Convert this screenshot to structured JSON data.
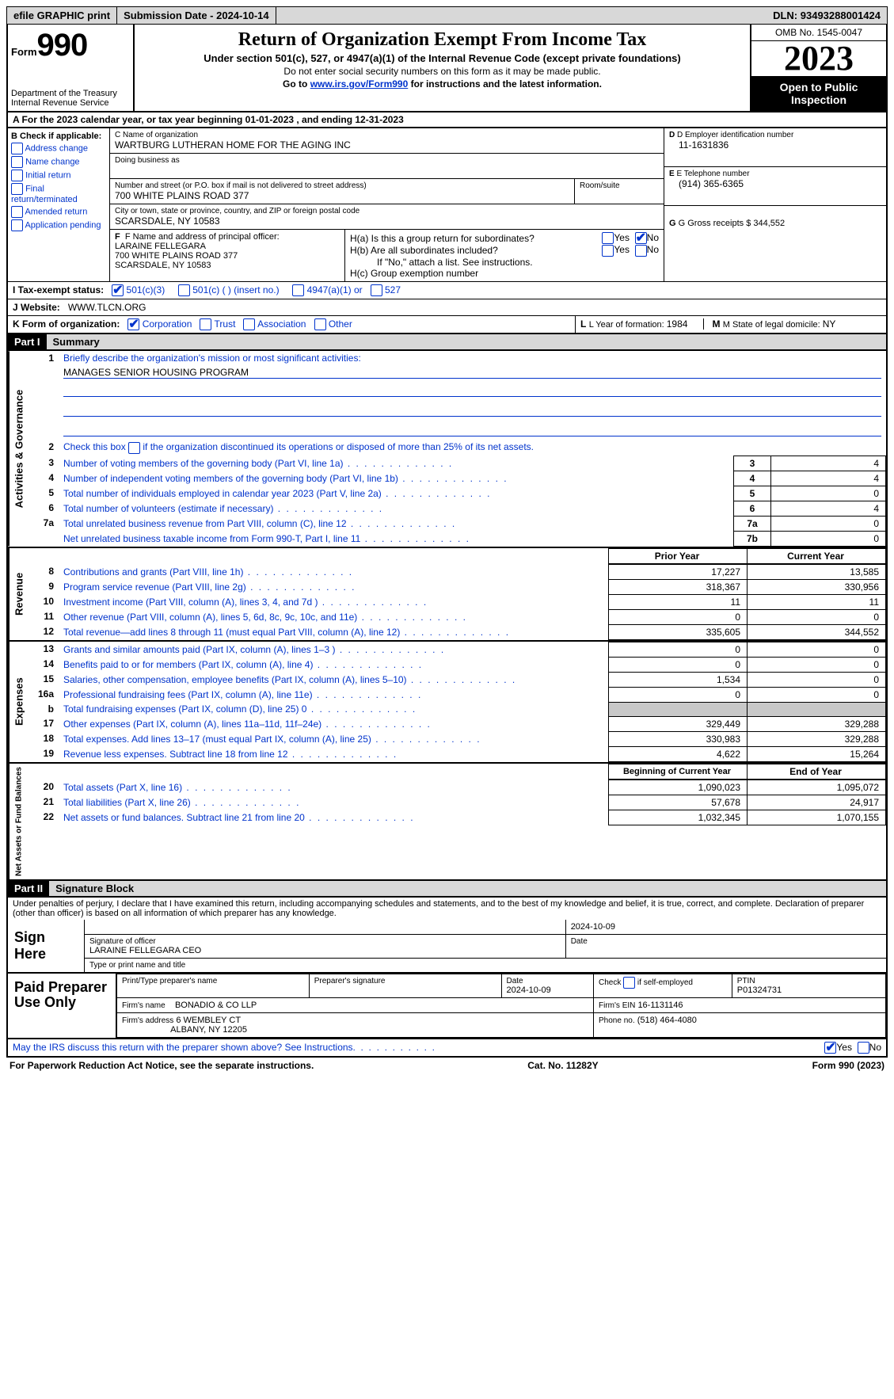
{
  "topbar": {
    "efile": "efile GRAPHIC print",
    "submission_label": "Submission Date - ",
    "submission_date": "2024-10-14",
    "dln_label": "DLN: ",
    "dln": "93493288001424"
  },
  "header": {
    "form_label": "Form",
    "form_num": "990",
    "dept": "Department of the Treasury\nInternal Revenue Service",
    "title": "Return of Organization Exempt From Income Tax",
    "subtitle": "Under section 501(c), 527, or 4947(a)(1) of the Internal Revenue Code (except private foundations)",
    "note1": "Do not enter social security numbers on this form as it may be made public.",
    "note2_prefix": "Go to ",
    "note2_link": "www.irs.gov/Form990",
    "note2_suffix": " for instructions and the latest information.",
    "omb": "OMB No. 1545-0047",
    "year": "2023",
    "inspection": "Open to Public Inspection"
  },
  "row_a": "A  For the 2023 calendar year, or tax year beginning 01-01-2023     , and ending 12-31-2023",
  "section_b": {
    "label": "B Check if applicable:",
    "items": [
      "Address change",
      "Name change",
      "Initial return",
      "Final return/terminated",
      "Amended return",
      "Application pending"
    ]
  },
  "section_c": {
    "name_lbl": "C Name of organization",
    "name": "WARTBURG LUTHERAN HOME FOR THE AGING INC",
    "dba_lbl": "Doing business as",
    "street_lbl": "Number and street (or P.O. box if mail is not delivered to street address)",
    "street": "700 WHITE PLAINS ROAD 377",
    "room_lbl": "Room/suite",
    "city_lbl": "City or town, state or province, country, and ZIP or foreign postal code",
    "city": "SCARSDALE, NY  10583"
  },
  "section_d": {
    "lbl": "D Employer identification number",
    "val": "11-1631836"
  },
  "section_e": {
    "lbl": "E Telephone number",
    "val": "(914) 365-6365"
  },
  "section_g": {
    "lbl": "G Gross receipts $ ",
    "val": "344,552"
  },
  "section_f": {
    "lbl": "F  Name and address of principal officer:",
    "name": "LARAINE FELLEGARA",
    "addr1": "700 WHITE PLAINS ROAD 377",
    "addr2": "SCARSDALE, NY  10583"
  },
  "section_h": {
    "ha": "H(a)  Is this a group return for subordinates?",
    "hb": "H(b)  Are all subordinates included?",
    "hb_note": "If \"No,\" attach a list. See instructions.",
    "hc": "H(c)  Group exemption number",
    "yes": "Yes",
    "no": "No"
  },
  "row_i": {
    "lbl": "I   Tax-exempt status:",
    "opt1": "501(c)(3)",
    "opt2": "501(c) (   ) (insert no.)",
    "opt3": "4947(a)(1) or",
    "opt4": "527"
  },
  "row_j": {
    "lbl": "J   Website:",
    "val": "WWW.TLCN.ORG"
  },
  "row_k": {
    "lbl": "K Form of organization:",
    "opts": [
      "Corporation",
      "Trust",
      "Association",
      "Other"
    ]
  },
  "row_l": {
    "lbl": "L Year of formation: ",
    "val": "1984"
  },
  "row_m": {
    "lbl": "M State of legal domicile: ",
    "val": "NY"
  },
  "part1": {
    "hdr": "Part I",
    "title": "Summary"
  },
  "governance": {
    "l1_desc": "Briefly describe the organization's mission or most significant activities:",
    "l1_val": "MANAGES SENIOR HOUSING PROGRAM",
    "l2_desc": "Check this box        if the organization discontinued its operations or disposed of more than 25% of its net assets.",
    "rows": [
      {
        "n": "3",
        "desc": "Number of voting members of the governing body (Part VI, line 1a)",
        "box": "3",
        "val": "4"
      },
      {
        "n": "4",
        "desc": "Number of independent voting members of the governing body (Part VI, line 1b)",
        "box": "4",
        "val": "4"
      },
      {
        "n": "5",
        "desc": "Total number of individuals employed in calendar year 2023 (Part V, line 2a)",
        "box": "5",
        "val": "0"
      },
      {
        "n": "6",
        "desc": "Total number of volunteers (estimate if necessary)",
        "box": "6",
        "val": "4"
      },
      {
        "n": "7a",
        "desc": "Total unrelated business revenue from Part VIII, column (C), line 12",
        "box": "7a",
        "val": "0"
      },
      {
        "n": "",
        "desc": "Net unrelated business taxable income from Form 990-T, Part I, line 11",
        "box": "7b",
        "val": "0"
      }
    ]
  },
  "revenue": {
    "hdr_prior": "Prior Year",
    "hdr_current": "Current Year",
    "rows": [
      {
        "n": "8",
        "desc": "Contributions and grants (Part VIII, line 1h)",
        "py": "17,227",
        "cy": "13,585"
      },
      {
        "n": "9",
        "desc": "Program service revenue (Part VIII, line 2g)",
        "py": "318,367",
        "cy": "330,956"
      },
      {
        "n": "10",
        "desc": "Investment income (Part VIII, column (A), lines 3, 4, and 7d )",
        "py": "11",
        "cy": "11"
      },
      {
        "n": "11",
        "desc": "Other revenue (Part VIII, column (A), lines 5, 6d, 8c, 9c, 10c, and 11e)",
        "py": "0",
        "cy": "0"
      },
      {
        "n": "12",
        "desc": "Total revenue—add lines 8 through 11 (must equal Part VIII, column (A), line 12)",
        "py": "335,605",
        "cy": "344,552"
      }
    ]
  },
  "expenses": {
    "rows": [
      {
        "n": "13",
        "desc": "Grants and similar amounts paid (Part IX, column (A), lines 1–3 )",
        "py": "0",
        "cy": "0"
      },
      {
        "n": "14",
        "desc": "Benefits paid to or for members (Part IX, column (A), line 4)",
        "py": "0",
        "cy": "0"
      },
      {
        "n": "15",
        "desc": "Salaries, other compensation, employee benefits (Part IX, column (A), lines 5–10)",
        "py": "1,534",
        "cy": "0"
      },
      {
        "n": "16a",
        "desc": "Professional fundraising fees (Part IX, column (A), line 11e)",
        "py": "0",
        "cy": "0"
      },
      {
        "n": "b",
        "desc": "Total fundraising expenses (Part IX, column (D), line 25) 0",
        "py": "GRAY",
        "cy": "GRAY"
      },
      {
        "n": "17",
        "desc": "Other expenses (Part IX, column (A), lines 11a–11d, 11f–24e)",
        "py": "329,449",
        "cy": "329,288"
      },
      {
        "n": "18",
        "desc": "Total expenses. Add lines 13–17 (must equal Part IX, column (A), line 25)",
        "py": "330,983",
        "cy": "329,288"
      },
      {
        "n": "19",
        "desc": "Revenue less expenses. Subtract line 18 from line 12",
        "py": "4,622",
        "cy": "15,264"
      }
    ]
  },
  "netassets": {
    "hdr_begin": "Beginning of Current Year",
    "hdr_end": "End of Year",
    "rows": [
      {
        "n": "20",
        "desc": "Total assets (Part X, line 16)",
        "py": "1,090,023",
        "cy": "1,095,072"
      },
      {
        "n": "21",
        "desc": "Total liabilities (Part X, line 26)",
        "py": "57,678",
        "cy": "24,917"
      },
      {
        "n": "22",
        "desc": "Net assets or fund balances. Subtract line 21 from line 20",
        "py": "1,032,345",
        "cy": "1,070,155"
      }
    ]
  },
  "part2": {
    "hdr": "Part II",
    "title": "Signature Block"
  },
  "penalties": "Under penalties of perjury, I declare that I have examined this return, including accompanying schedules and statements, and to the best of my knowledge and belief, it is true, correct, and complete. Declaration of preparer (other than officer) is based on all information of which preparer has any knowledge.",
  "sign": {
    "here": "Sign Here",
    "date": "2024-10-09",
    "sig_lbl": "Signature of officer",
    "officer": "LARAINE FELLEGARA  CEO",
    "type_lbl": "Type or print name and title",
    "date_lbl": "Date"
  },
  "preparer": {
    "left": "Paid Preparer Use Only",
    "name_lbl": "Print/Type preparer's name",
    "sig_lbl": "Preparer's signature",
    "date_lbl": "Date",
    "date": "2024-10-09",
    "check_lbl": "Check         if self-employed",
    "ptin_lbl": "PTIN",
    "ptin": "P01324731",
    "firm_name_lbl": "Firm's name",
    "firm_name": "BONADIO & CO LLP",
    "firm_ein_lbl": "Firm's EIN",
    "firm_ein": "16-1131146",
    "firm_addr_lbl": "Firm's address",
    "firm_addr1": "6 WEMBLEY CT",
    "firm_addr2": "ALBANY, NY  12205",
    "phone_lbl": "Phone no.",
    "phone": "(518) 464-4080"
  },
  "discuss": "May the IRS discuss this return with the preparer shown above? See Instructions.",
  "footer": {
    "left": "For Paperwork Reduction Act Notice, see the separate instructions.",
    "mid": "Cat. No. 11282Y",
    "right_form": "Form ",
    "right_num": "990",
    "right_year": " (2023)"
  },
  "vlabels": {
    "gov": "Activities & Governance",
    "rev": "Revenue",
    "exp": "Expenses",
    "net": "Net Assets or Fund Balances"
  }
}
